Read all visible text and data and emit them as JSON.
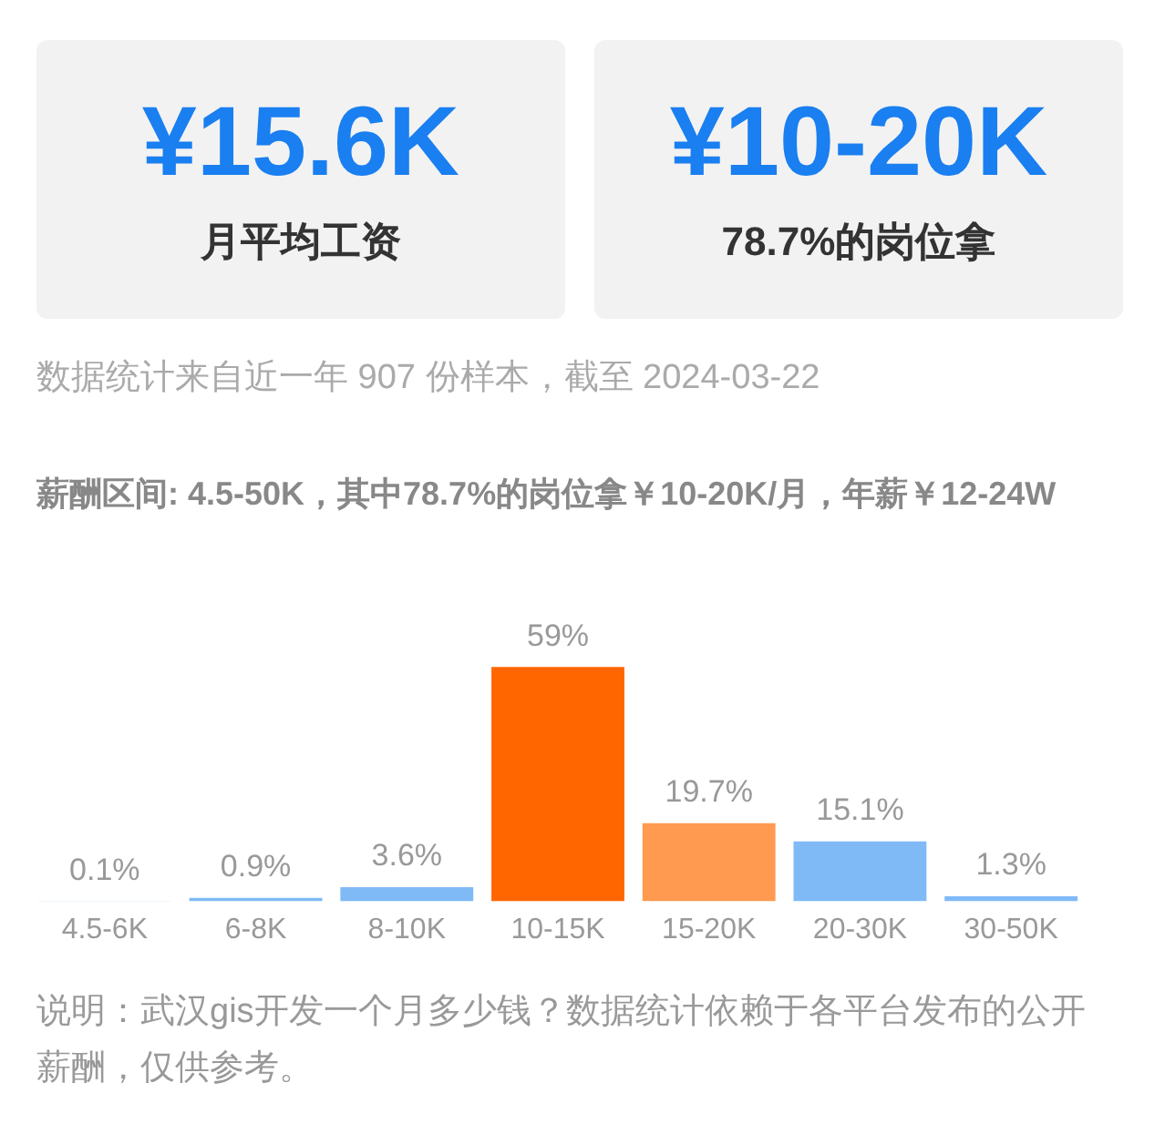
{
  "chart_data": {
    "type": "bar",
    "annotations": [
      "¥15.6K",
      "月平均工资",
      "¥10-20K",
      "78.7%的岗位拿",
      "数据统计来自近一年 907 份样本，截至 2024-03-22",
      "薪酬区间: 4.5-50K，其中78.7%的岗位拿￥10-20K/月，年薪￥12-24W",
      "说明：武汉gis开发一个月多少钱？数据统计依赖于各平台发布的公开薪酬，仅供参考。"
    ],
    "categories": [
      "4.5-6K",
      "6-8K",
      "8-10K",
      "10-15K",
      "15-20K",
      "20-30K",
      "30-50K"
    ],
    "values": [
      0.1,
      0.9,
      3.6,
      59,
      19.7,
      15.1,
      1.3
    ],
    "colors": [
      "#7fbaf7",
      "#7fbaf7",
      "#7fbaf7",
      "#ff6600",
      "#ff9a50",
      "#7fbaf7",
      "#7fbaf7"
    ],
    "value_labels": [
      "0.1%",
      "0.9%",
      "3.6%",
      "59%",
      "19.7%",
      "15.1%",
      "1.3%"
    ],
    "grid": false,
    "legend": false
  }
}
